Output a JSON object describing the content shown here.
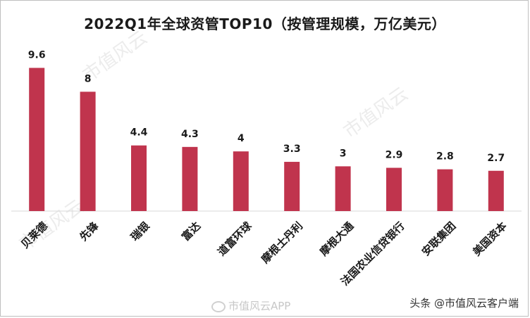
{
  "chart_data": {
    "type": "bar",
    "title": "2022Q1年全球资管TOP10（按管理规模，万亿美元）",
    "categories": [
      "贝莱德",
      "先锋",
      "瑞银",
      "富达",
      "道富环球",
      "摩根士丹利",
      "摩根大通",
      "法国农业信贷银行",
      "安联集团",
      "美国资本"
    ],
    "values": [
      9.6,
      8,
      4.4,
      4.3,
      4,
      3.3,
      3,
      2.9,
      2.8,
      2.7
    ],
    "value_labels": [
      "9.6",
      "8",
      "4.4",
      "4.3",
      "4",
      "3.3",
      "3",
      "2.9",
      "2.8",
      "2.7"
    ],
    "ylim": [
      0,
      10
    ],
    "grid": false,
    "bar_color": "#c0344d",
    "xlabel": "",
    "ylabel": ""
  },
  "watermark": "市值风云",
  "footer": {
    "app": "市值风云APP",
    "source": "头条 @市值风云客户端"
  }
}
